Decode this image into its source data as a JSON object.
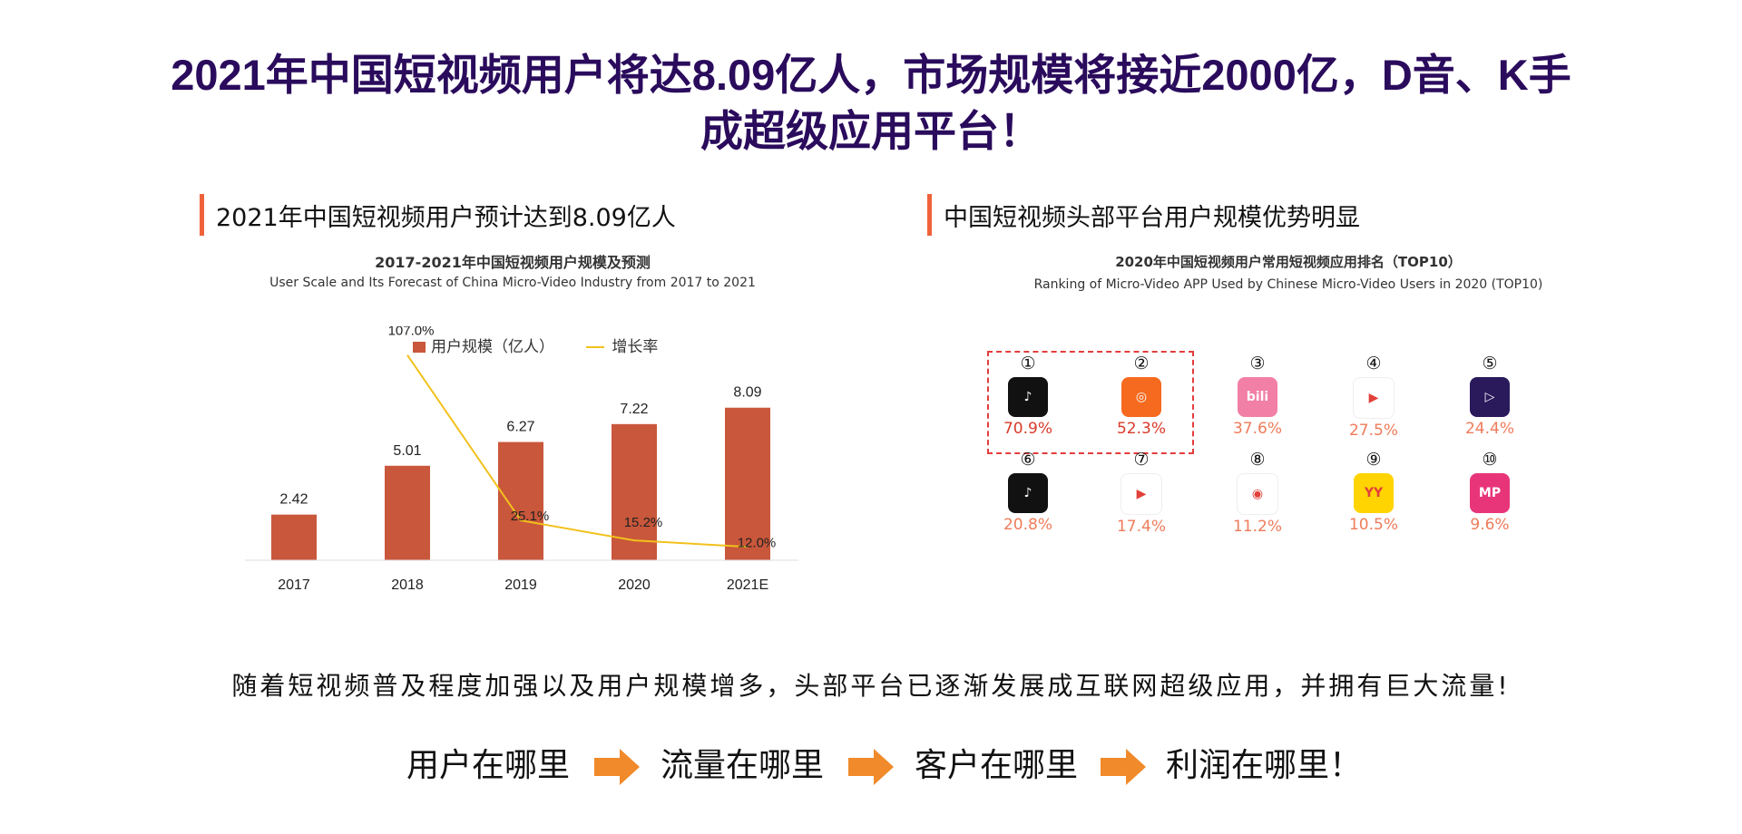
{
  "title": {
    "line1": "2021年中国短视频用户将达8.09亿人，市场规模将接近2000亿，D音、K手",
    "line2": "成超级应用平台！"
  },
  "left_section": {
    "heading": "2021年中国短视频用户预计达到8.09亿人",
    "chart_title": "2017-2021年中国短视频用户规模及预测",
    "chart_subtitle": "User Scale and Its Forecast of China Micro-Video Industry from 2017 to 2021",
    "legend_bar": "用户规模（亿人）",
    "legend_line": "增长率"
  },
  "chart_data": {
    "type": "bar",
    "title": "2017-2021年中国短视频用户规模及预测",
    "subtitle": "User Scale and Its Forecast of China Micro-Video Industry from 2017 to 2021",
    "categories": [
      "2017",
      "2018",
      "2019",
      "2020",
      "2021E"
    ],
    "series": [
      {
        "name": "用户规模（亿人）",
        "type": "bar",
        "values": [
          2.42,
          5.01,
          6.27,
          7.22,
          8.09
        ],
        "labels": [
          "2.42",
          "5.01",
          "6.27",
          "7.22",
          "8.09"
        ]
      },
      {
        "name": "增长率",
        "type": "line",
        "values": [
          null,
          107.0,
          25.1,
          15.2,
          12.0
        ],
        "labels": [
          "",
          "107.0%",
          "25.1%",
          "15.2%",
          "12.0%"
        ]
      }
    ],
    "colors": {
      "bar": "#c9573b",
      "line": "#f2c11c"
    },
    "legend": "top",
    "grid": false,
    "xlabel": "",
    "ylabel": ""
  },
  "right_section": {
    "heading": "中国短视频头部平台用户规模优势明显",
    "chart_title": "2020年中国短视频用户常用短视频应用排名（TOP10）",
    "chart_subtitle": "Ranking of Micro-Video APP Used by Chinese Micro-Video Users in 2020 (TOP10)",
    "apps": [
      {
        "rank": "①",
        "pct": "70.9%",
        "icon": "tiktok-icon",
        "bg": "#111111",
        "glyph": "♪",
        "pct_color": "#d93a2a"
      },
      {
        "rank": "②",
        "pct": "52.3%",
        "icon": "kuaishou-icon",
        "bg": "#f56a1f",
        "glyph": "◎",
        "pct_color": "#d93a2a"
      },
      {
        "rank": "③",
        "pct": "37.6%",
        "icon": "bilibili-icon",
        "bg": "#f27fa6",
        "glyph": "bili",
        "pct_color": "#ef7b5a"
      },
      {
        "rank": "④",
        "pct": "27.5%",
        "icon": "weishi-icon",
        "bg": "#ffffff",
        "glyph": "▶",
        "pct_color": "#ef7b5a"
      },
      {
        "rank": "⑤",
        "pct": "24.4%",
        "icon": "xigua-icon",
        "bg": "#2a1a5c",
        "glyph": "▷",
        "pct_color": "#ef7b5a"
      },
      {
        "rank": "⑥",
        "pct": "20.8%",
        "icon": "douyin-lite-icon",
        "bg": "#111111",
        "glyph": "♪",
        "pct_color": "#ef7b5a"
      },
      {
        "rank": "⑦",
        "pct": "17.4%",
        "icon": "haokan-icon",
        "bg": "#ffffff",
        "glyph": "▶",
        "pct_color": "#ef7b5a"
      },
      {
        "rank": "⑧",
        "pct": "11.2%",
        "icon": "pipixia-icon",
        "bg": "#ffffff",
        "glyph": "◉",
        "pct_color": "#ef7b5a"
      },
      {
        "rank": "⑨",
        "pct": "10.5%",
        "icon": "yy-icon",
        "bg": "#ffd400",
        "glyph": "YY",
        "pct_color": "#ef7b5a"
      },
      {
        "rank": "⑩",
        "pct": "9.6%",
        "icon": "meipai-icon",
        "bg": "#e8357a",
        "glyph": "MP",
        "pct_color": "#ef7b5a"
      }
    ]
  },
  "body_text": "随着短视频普及程度加强以及用户规模增多，头部平台已逐渐发展成互联网超级应用，并拥有巨大流量!",
  "flow": {
    "steps": [
      "用户在哪里",
      "流量在哪里",
      "客户在哪里",
      "利润在哪里！"
    ],
    "arrow_color": "#f08a2a"
  }
}
